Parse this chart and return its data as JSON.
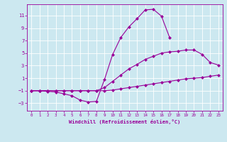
{
  "xlabel": "Windchill (Refroidissement éolien,°C)",
  "bg_color": "#cce8f0",
  "line_color": "#990099",
  "grid_color": "#ffffff",
  "xlim": [
    -0.5,
    23.5
  ],
  "ylim": [
    -4.2,
    12.8
  ],
  "xticks": [
    0,
    1,
    2,
    3,
    4,
    5,
    6,
    7,
    8,
    9,
    10,
    11,
    12,
    13,
    14,
    15,
    16,
    17,
    18,
    19,
    20,
    21,
    22,
    23
  ],
  "yticks": [
    -3,
    -1,
    1,
    3,
    5,
    7,
    9,
    11
  ],
  "upper_x": [
    0,
    1,
    2,
    3,
    4,
    5,
    6,
    7,
    8,
    9,
    10,
    11,
    12,
    13,
    14,
    15,
    16,
    17
  ],
  "upper_y": [
    -1,
    -1,
    -1.1,
    -1.2,
    -1.5,
    -1.8,
    -2.5,
    -2.8,
    -2.7,
    0.8,
    4.8,
    7.5,
    9.2,
    10.5,
    11.9,
    12.0,
    10.9,
    7.5
  ],
  "middle_x": [
    0,
    1,
    2,
    3,
    4,
    5,
    6,
    7,
    8,
    9,
    10,
    11,
    12,
    13,
    14,
    15,
    16,
    17,
    18,
    19,
    20,
    21,
    22,
    23
  ],
  "middle_y": [
    -1,
    -1,
    -1,
    -1,
    -1,
    -1,
    -1,
    -1,
    -1,
    -0.5,
    0.5,
    1.5,
    2.5,
    3.2,
    4.0,
    4.5,
    5.0,
    5.2,
    5.3,
    5.5,
    5.5,
    4.8,
    3.5,
    3.1
  ],
  "lower_x": [
    0,
    1,
    2,
    3,
    4,
    5,
    6,
    7,
    8,
    9,
    10,
    11,
    12,
    13,
    14,
    15,
    16,
    17,
    18,
    19,
    20,
    21,
    22,
    23
  ],
  "lower_y": [
    -1,
    -1,
    -1,
    -1,
    -1,
    -1,
    -1,
    -1,
    -1,
    -1,
    -0.9,
    -0.7,
    -0.5,
    -0.3,
    -0.1,
    0.1,
    0.3,
    0.5,
    0.7,
    0.9,
    1.0,
    1.1,
    1.3,
    1.5
  ]
}
